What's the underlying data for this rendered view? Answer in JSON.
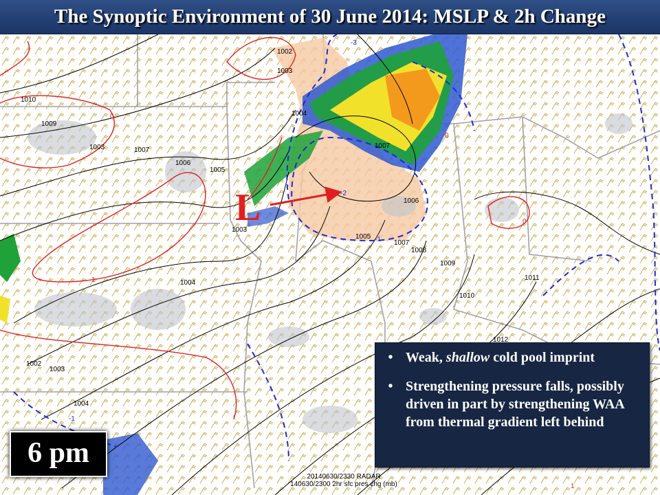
{
  "title": "The Synoptic Environment of 30 June 2014:  MSLP & 2h Change",
  "time_label": "6 pm",
  "low_marker": "L",
  "bullets": [
    {
      "prefix": "Weak, ",
      "emphasis": "shallow",
      "suffix": " cold pool imprint"
    },
    {
      "text": "Strengthening pressure falls, possibly driven in part by strengthening WAA from thermal gradient left behind"
    }
  ],
  "footer": {
    "line1": "20140630/2330 RADAR",
    "line2": "140630/2300 2hr sfc pres chg (mb)"
  },
  "isobar_labels": [
    "1010",
    "1009",
    "1003",
    "1007",
    "1006",
    "1005",
    "1003",
    "1004",
    "1002",
    "1003",
    "1004",
    "1002",
    "1003",
    "1004",
    "1005",
    "1007",
    "1007",
    "1006",
    "1008",
    "1009",
    "1010",
    "1011",
    "1012",
    "1012"
  ],
  "change_labels": [
    "0",
    "-1",
    "-1",
    "-2",
    "-3",
    "0",
    "0",
    "1",
    "1"
  ],
  "colors": {
    "title_bg": "#23427a",
    "isobar": "#000000",
    "pressure_rise": "#e02020",
    "pressure_fall": "#1a2bd8",
    "fall_shading": "#f6c9a4",
    "wind_barb": "#c8a23a",
    "radar_green": "#1fa23a",
    "radar_yellow": "#f2e12b",
    "radar_orange": "#f39a1c",
    "radar_blue": "#2f59d0"
  }
}
